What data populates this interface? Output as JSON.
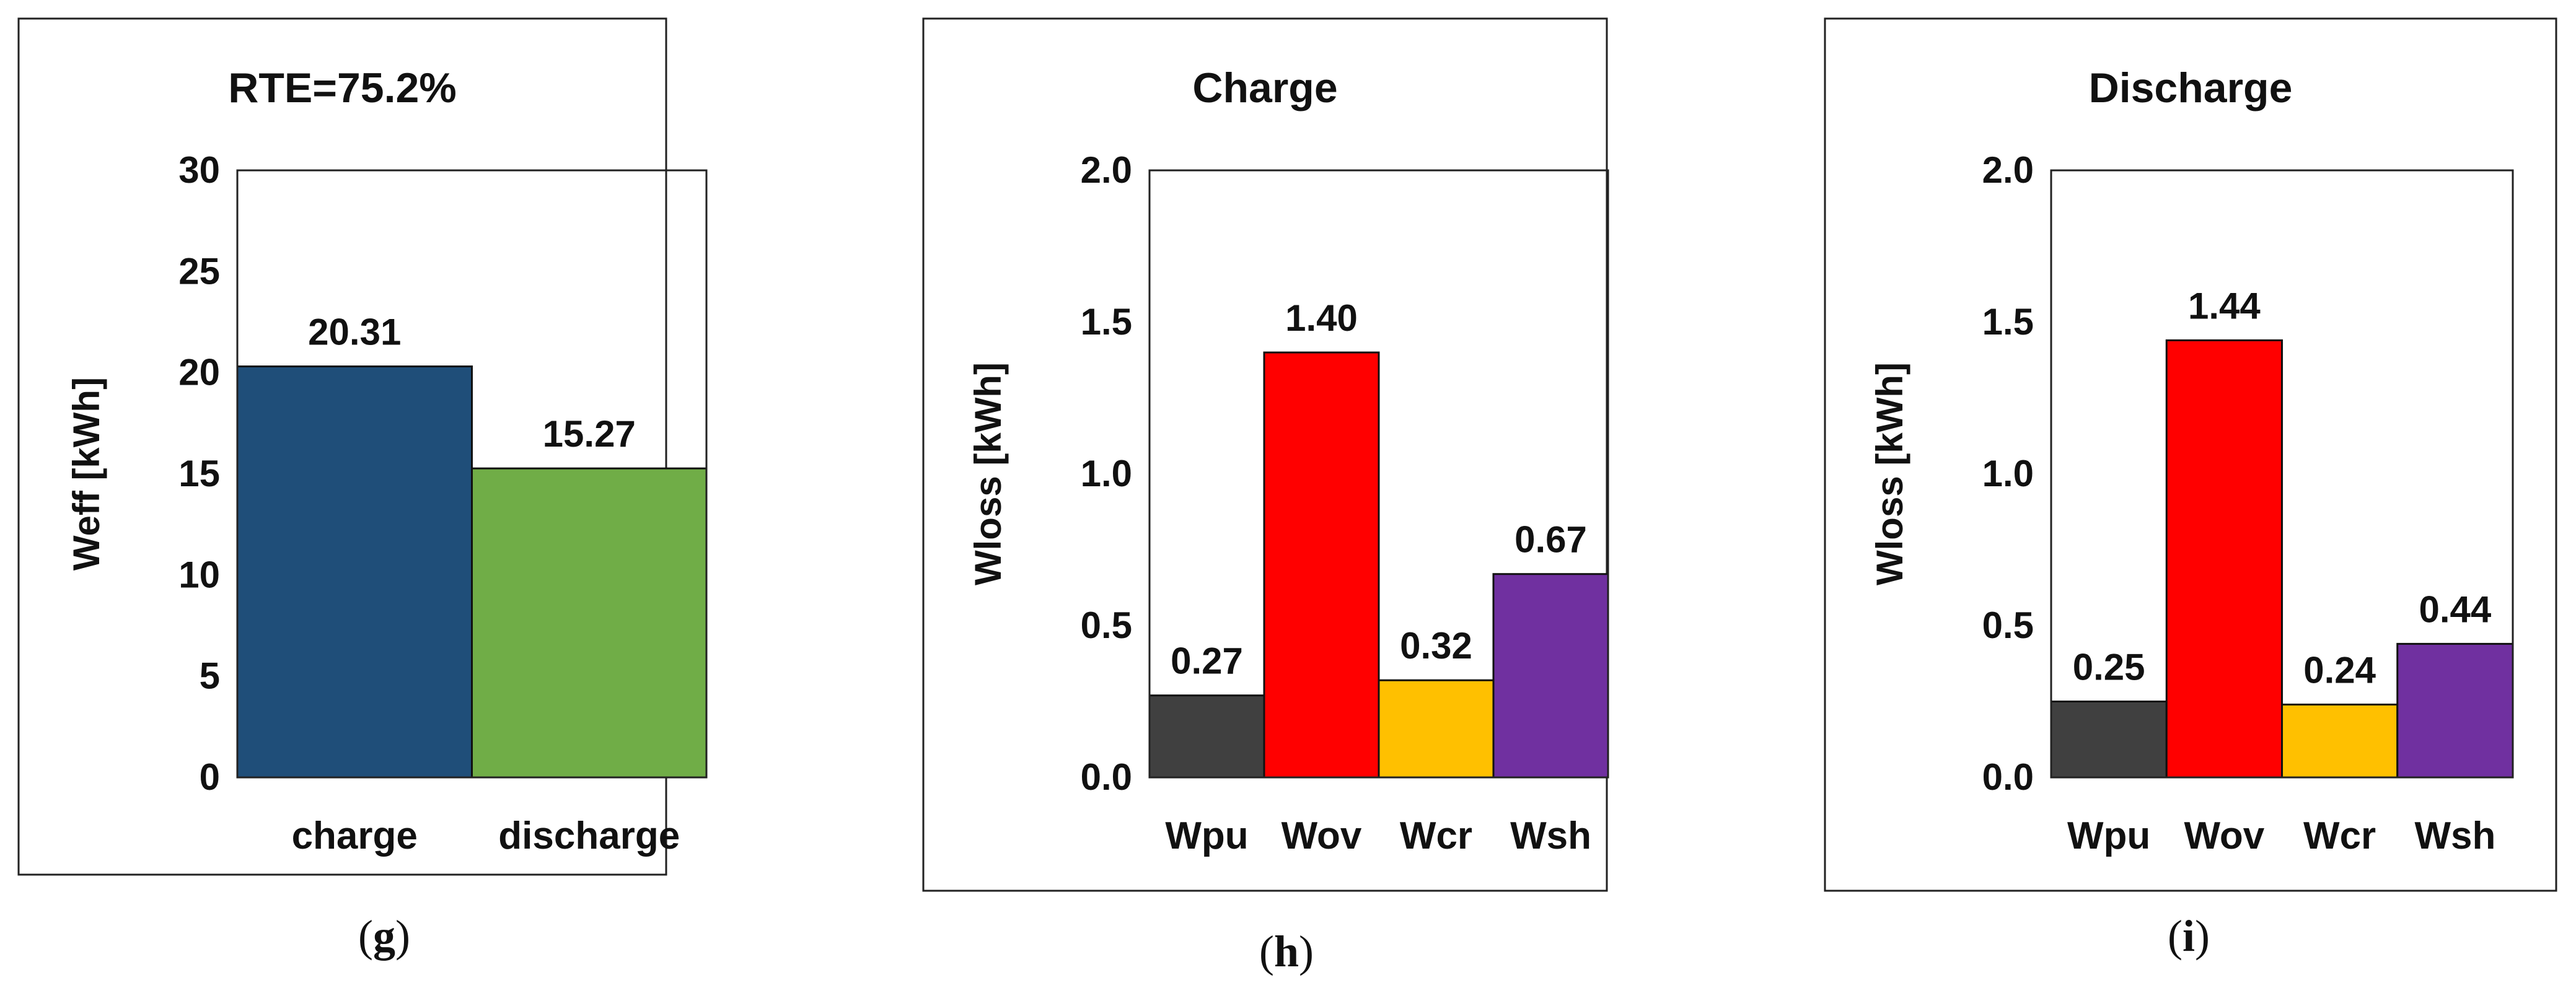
{
  "chart_data": [
    {
      "type": "bar",
      "title": "RTE=75.2%",
      "ylabel": "Weff [kWh]",
      "xlabel": "",
      "categories": [
        "charge",
        "discharge"
      ],
      "values": [
        20.31,
        15.27
      ],
      "value_labels": [
        "20.31",
        "15.27"
      ],
      "colors": [
        "#1F4E79",
        "#70AD47"
      ],
      "ylim": [
        0,
        30
      ],
      "yticks": [
        0,
        5,
        10,
        15,
        20,
        25,
        30
      ],
      "ytick_labels": [
        "0",
        "5",
        "10",
        "15",
        "20",
        "25",
        "30"
      ],
      "grid": false,
      "caption_open": "(",
      "caption_letter": "g",
      "caption_close": ")"
    },
    {
      "type": "bar",
      "title": "Charge",
      "ylabel": "Wloss [kWh]",
      "xlabel": "",
      "categories": [
        "Wpu",
        "Wov",
        "Wcr",
        "Wsh"
      ],
      "values": [
        0.27,
        1.4,
        0.32,
        0.67
      ],
      "value_labels": [
        "0.27",
        "1.40",
        "0.32",
        "0.67"
      ],
      "colors": [
        "#404040",
        "#FF0000",
        "#FFC000",
        "#7030A0"
      ],
      "ylim": [
        0,
        2.0
      ],
      "yticks": [
        0,
        0.5,
        1.0,
        1.5,
        2.0
      ],
      "ytick_labels": [
        "0.0",
        "0.5",
        "1.0",
        "1.5",
        "2.0"
      ],
      "grid": false,
      "caption_open": "(",
      "caption_letter": "h",
      "caption_close": ")"
    },
    {
      "type": "bar",
      "title": "Discharge",
      "ylabel": "Wloss [kWh]",
      "xlabel": "",
      "categories": [
        "Wpu",
        "Wov",
        "Wcr",
        "Wsh"
      ],
      "values": [
        0.25,
        1.44,
        0.24,
        0.44
      ],
      "value_labels": [
        "0.25",
        "1.44",
        "0.24",
        "0.44"
      ],
      "colors": [
        "#404040",
        "#FF0000",
        "#FFC000",
        "#7030A0"
      ],
      "ylim": [
        0,
        2.0
      ],
      "yticks": [
        0,
        0.5,
        1.0,
        1.5,
        2.0
      ],
      "ytick_labels": [
        "0.0",
        "0.5",
        "1.0",
        "1.5",
        "2.0"
      ],
      "grid": false,
      "caption_open": "(",
      "caption_letter": "i",
      "caption_close": ")"
    }
  ]
}
